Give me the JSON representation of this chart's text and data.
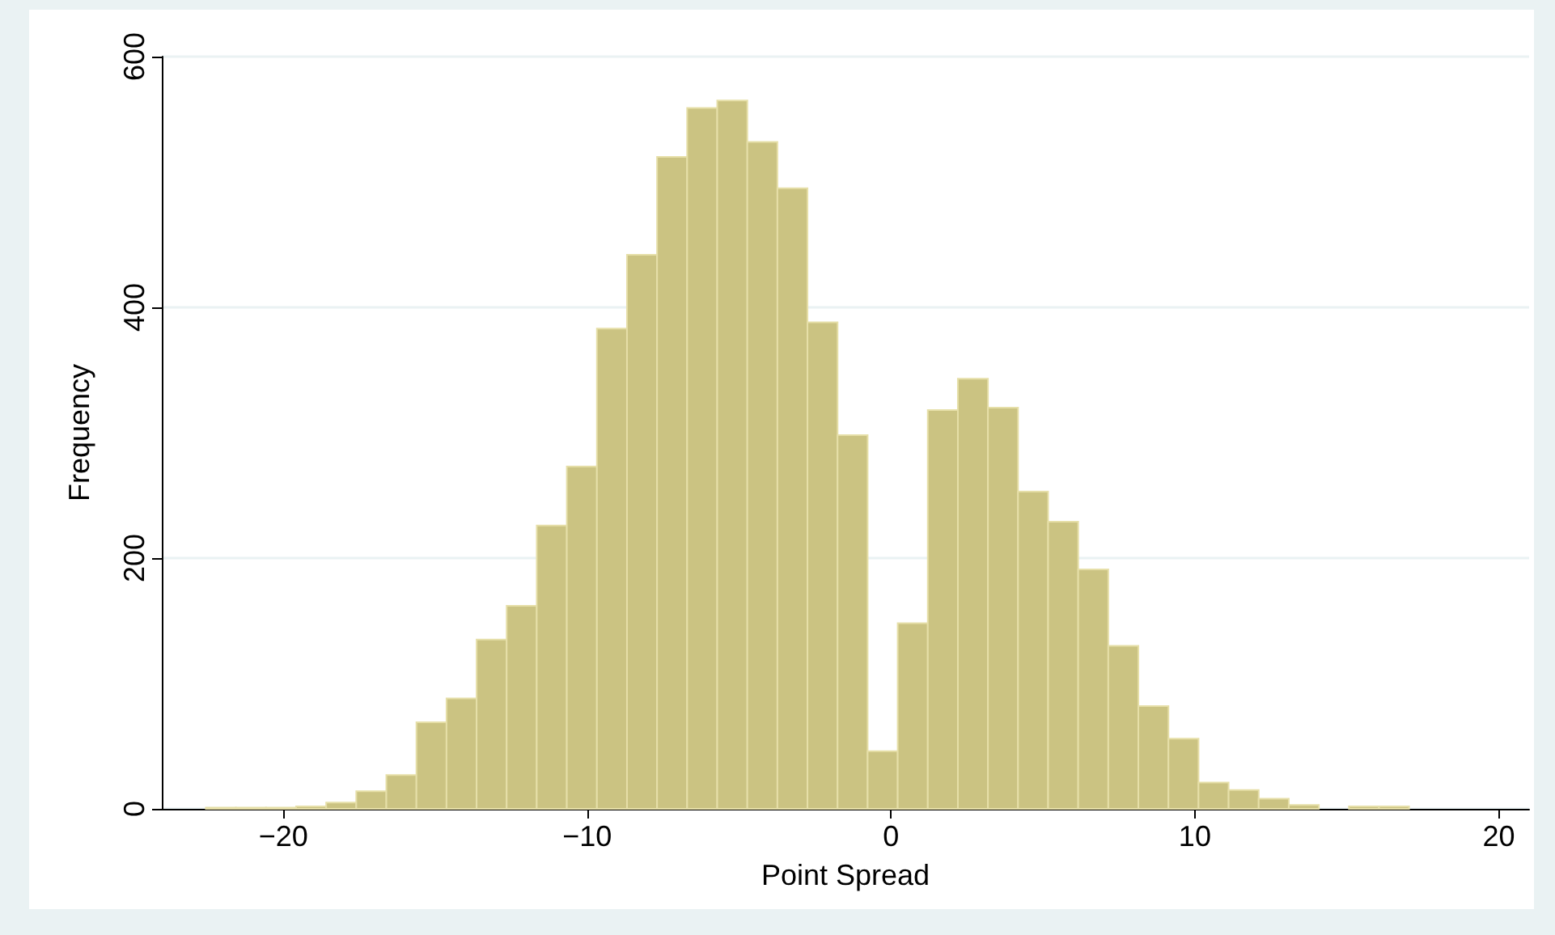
{
  "chart_data": {
    "type": "histogram",
    "xlabel": "Point Spread",
    "ylabel": "Frequency",
    "bins": [
      -22.55,
      -21.56,
      -20.57,
      -19.58,
      -18.59,
      -17.6,
      -16.61,
      -15.62,
      -14.63,
      -13.64,
      -12.65,
      -11.66,
      -10.67,
      -9.68,
      -8.69,
      -7.7,
      -6.71,
      -5.72,
      -4.73,
      -3.74,
      -2.75,
      -1.76,
      -0.77,
      0.22,
      1.21,
      2.2,
      3.19,
      4.18,
      5.17,
      6.16,
      7.15,
      8.14,
      9.13,
      10.12,
      11.11,
      12.1,
      13.09,
      14.08,
      15.07,
      16.06,
      17.05
    ],
    "values": [
      1,
      1,
      1,
      2,
      5,
      14,
      27,
      69,
      88,
      135,
      162,
      226,
      273,
      383,
      442,
      520,
      559,
      565,
      532,
      495,
      388,
      298,
      46,
      148,
      318,
      343,
      320,
      253,
      229,
      191,
      130,
      82,
      56,
      21,
      15,
      8,
      3,
      0,
      2,
      2
    ],
    "color": "#cbc382",
    "xlim": [
      -24,
      21
    ],
    "xticks": [
      {
        "value": -20,
        "label": "−20"
      },
      {
        "value": -10,
        "label": "−10"
      },
      0,
      10,
      20
    ],
    "ylim": [
      0,
      600
    ],
    "yticks": [
      0,
      200,
      400,
      600
    ],
    "grid": "y"
  }
}
